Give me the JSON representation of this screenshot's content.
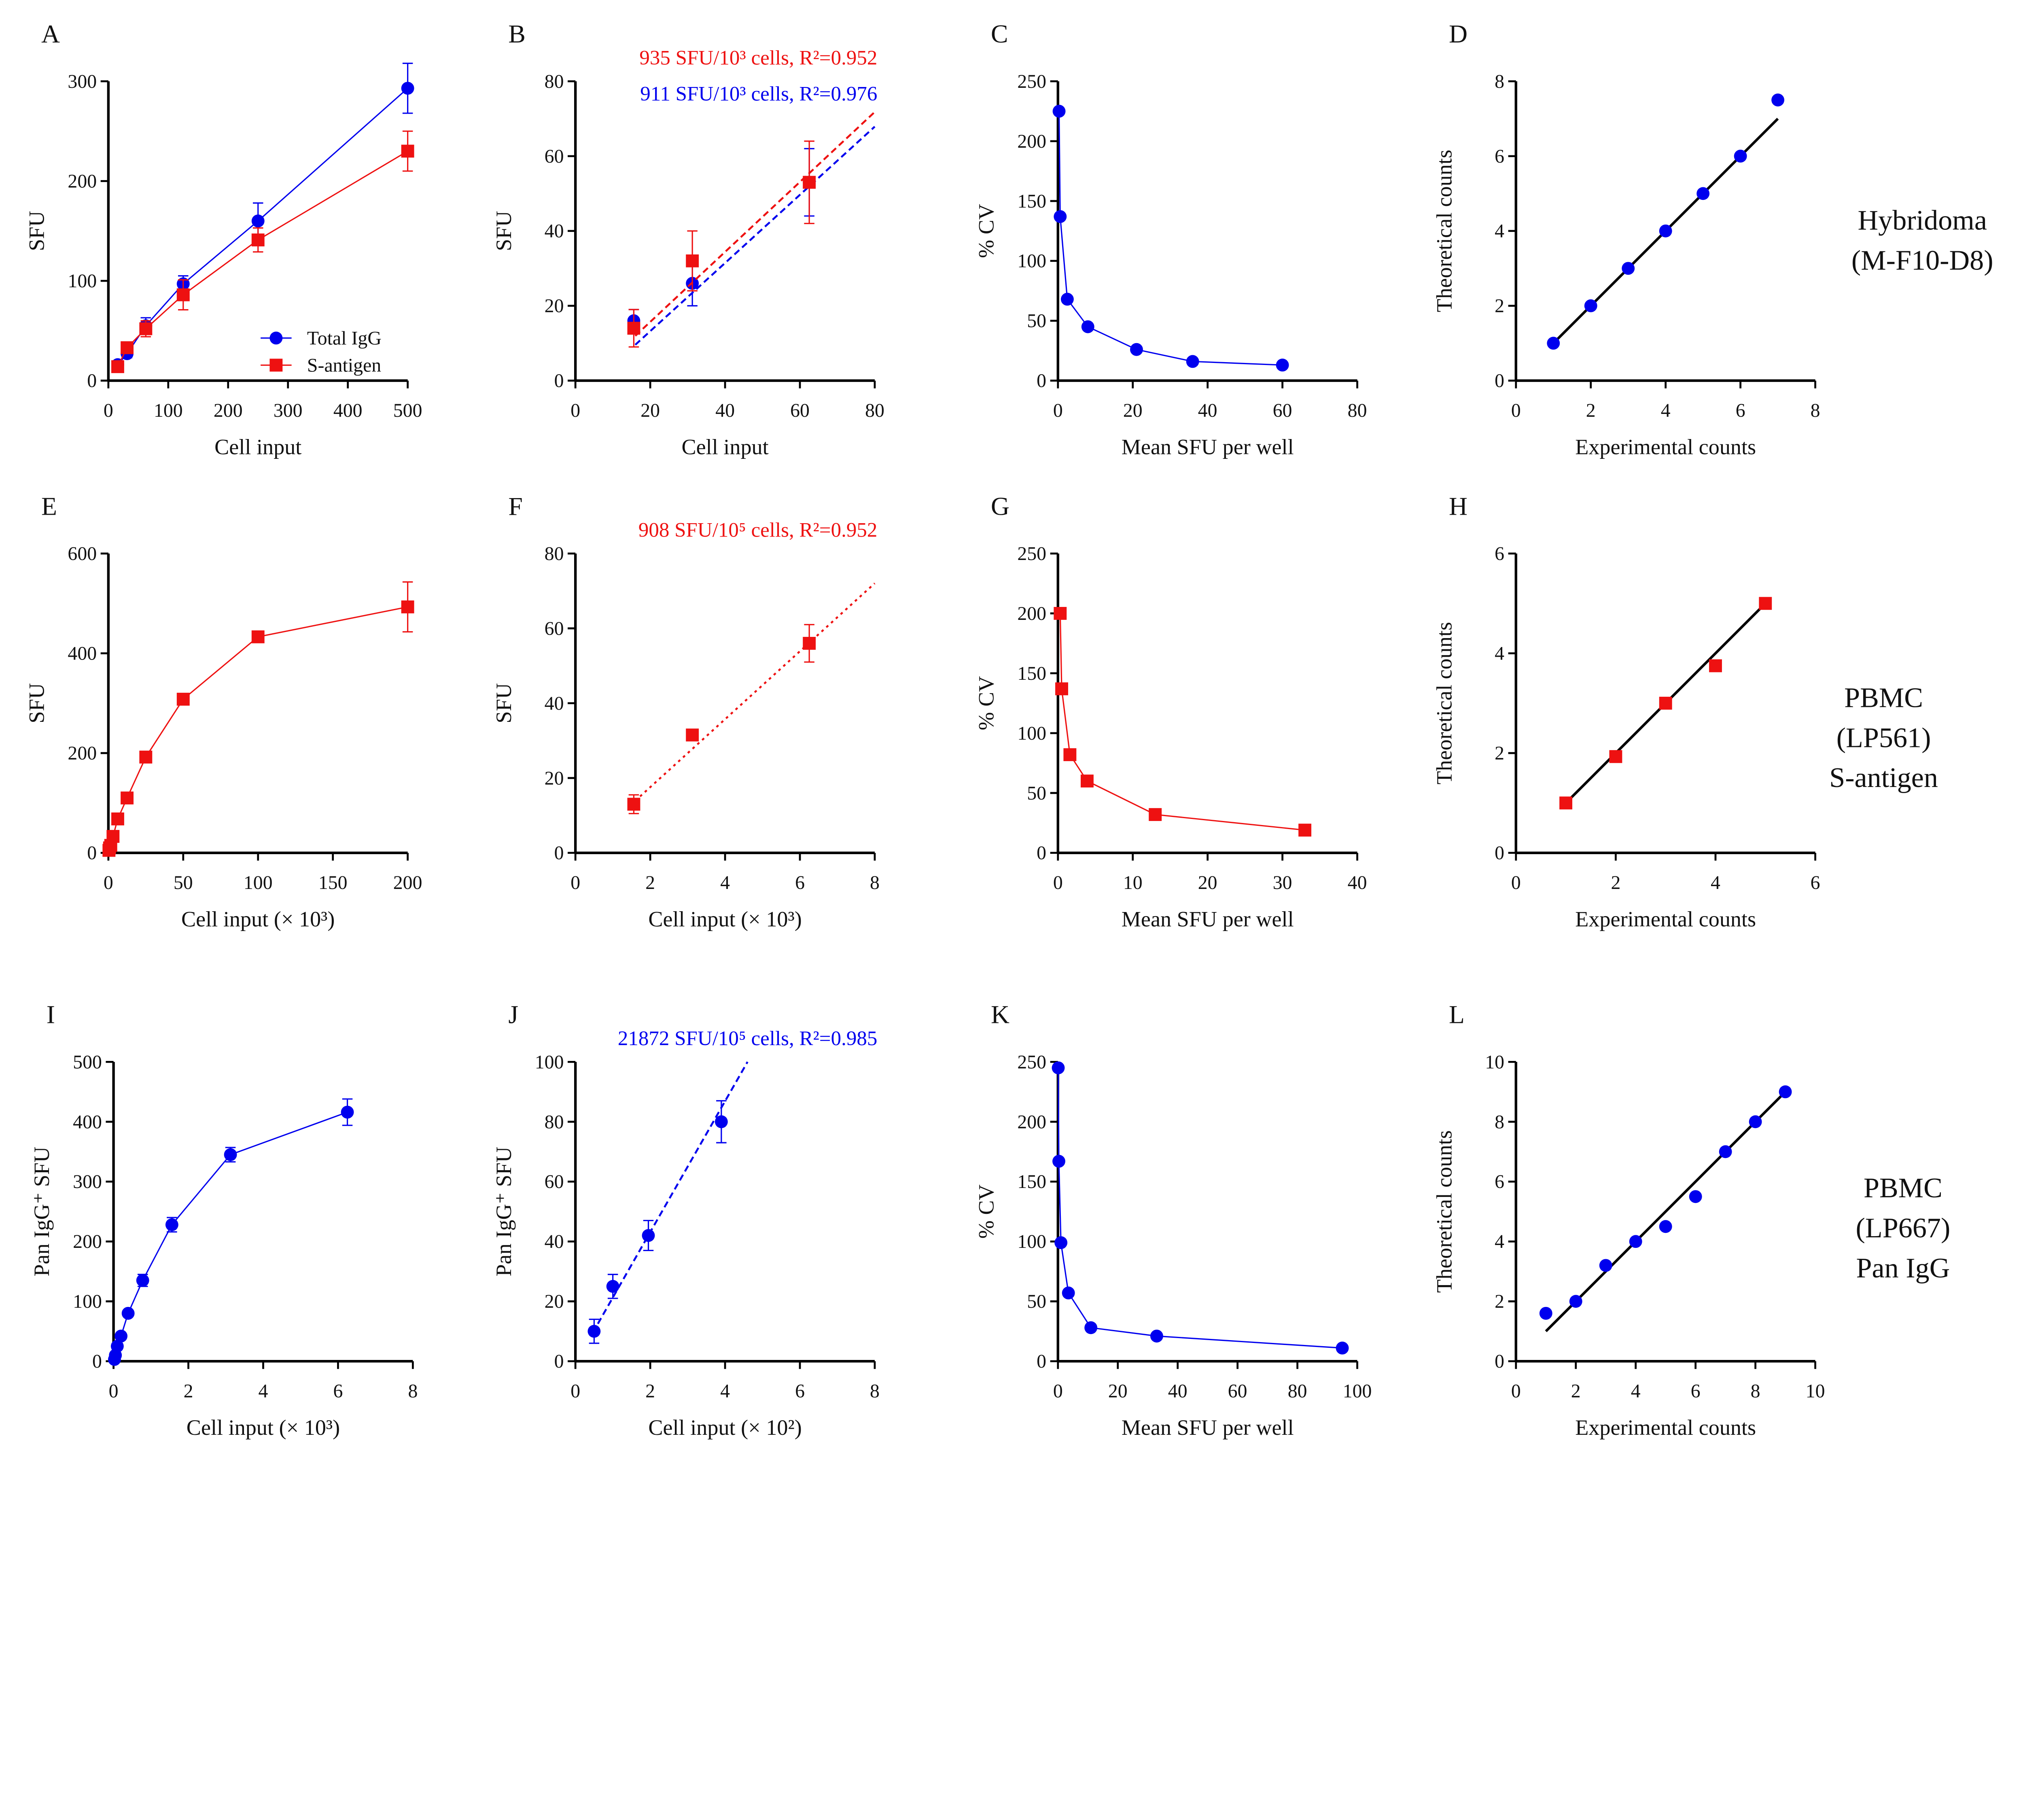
{
  "colors": {
    "blue": "#0000ee",
    "red": "#ee1111",
    "black": "#000000"
  },
  "row_labels": [
    [
      "Hybridoma",
      "(M-F10-D8)"
    ],
    [
      "PBMC",
      "(LP561)",
      "S-antigen"
    ],
    [
      "PBMC",
      "(LP667)",
      "Pan IgG"
    ]
  ],
  "chart_data": [
    {
      "panel": "A",
      "type": "line",
      "xlabel": "Cell input",
      "ylabel": "SFU",
      "xlim": [
        0,
        500
      ],
      "ylim": [
        0,
        300
      ],
      "xticks": [
        0,
        100,
        200,
        300,
        400,
        500
      ],
      "yticks": [
        0,
        100,
        200,
        300
      ],
      "legend": "bottom-right",
      "series": [
        {
          "name": "Total IgG",
          "marker": "circle",
          "color": "blue",
          "x": [
            15.6,
            31.25,
            62.5,
            125,
            250,
            500
          ],
          "y": [
            16,
            27,
            55,
            97,
            160,
            293
          ],
          "err": [
            3,
            4,
            8,
            8,
            18,
            25
          ]
        },
        {
          "name": "S-antigen",
          "marker": "square",
          "color": "red",
          "x": [
            15.6,
            31.25,
            62.5,
            125,
            250,
            500
          ],
          "y": [
            14,
            33,
            52,
            86,
            141,
            230
          ],
          "err": [
            4,
            5,
            8,
            15,
            12,
            20
          ]
        }
      ]
    },
    {
      "panel": "B",
      "type": "scatter",
      "xlabel": "Cell input",
      "ylabel": "SFU",
      "xlim": [
        0,
        80
      ],
      "ylim": [
        0,
        80
      ],
      "xticks": [
        0,
        20,
        40,
        60,
        80
      ],
      "yticks": [
        0,
        20,
        40,
        60,
        80
      ],
      "annotations": [
        {
          "text": "935 SFU/10³ cells, R²=0.952",
          "color": "red"
        },
        {
          "text": "911 SFU/10³ cells, R²=0.976",
          "color": "blue"
        }
      ],
      "series": [
        {
          "marker": "circle",
          "color": "blue",
          "x": [
            15.6,
            31.25,
            62.5
          ],
          "y": [
            16,
            26,
            53
          ],
          "err": [
            3,
            6,
            9
          ],
          "fit": {
            "slope": 0.911,
            "intercept": -5,
            "x": [
              16,
              80
            ],
            "style": "dashed"
          }
        },
        {
          "marker": "square",
          "color": "red",
          "x": [
            15.6,
            31.25,
            62.5
          ],
          "y": [
            14,
            32,
            53
          ],
          "err": [
            5,
            8,
            11
          ],
          "fit": {
            "slope": 0.935,
            "intercept": -3,
            "x": [
              16,
              80
            ],
            "style": "dashed"
          }
        }
      ]
    },
    {
      "panel": "C",
      "type": "line",
      "xlabel": "Mean SFU per well",
      "ylabel": "% CV",
      "xlim": [
        0,
        80
      ],
      "ylim": [
        0,
        250
      ],
      "xticks": [
        0,
        20,
        40,
        60,
        80
      ],
      "yticks": [
        0,
        50,
        100,
        150,
        200,
        250
      ],
      "series": [
        {
          "marker": "circle",
          "color": "blue",
          "x": [
            0.3,
            0.6,
            2.5,
            8,
            21,
            36,
            60
          ],
          "y": [
            225,
            137,
            68,
            45,
            26,
            16,
            13
          ]
        }
      ]
    },
    {
      "panel": "D",
      "type": "scatter",
      "xlabel": "Experimental counts",
      "ylabel": "Theoretical counts",
      "xlim": [
        0,
        8
      ],
      "ylim": [
        0,
        8
      ],
      "xticks": [
        0,
        2,
        4,
        6,
        8
      ],
      "yticks": [
        0,
        2,
        4,
        6,
        8
      ],
      "series": [
        {
          "marker": "circle",
          "color": "blue",
          "x": [
            1,
            2,
            3,
            4,
            5,
            6,
            7
          ],
          "y": [
            1,
            2,
            3,
            4,
            5,
            6,
            7.5
          ],
          "fit": {
            "slope": 1,
            "intercept": 0,
            "x": [
              1,
              7
            ],
            "style": "solid",
            "color": "black"
          }
        }
      ]
    },
    {
      "panel": "E",
      "type": "line",
      "xlabel": "Cell input (× 10³)",
      "ylabel": "SFU",
      "xlim": [
        0,
        200
      ],
      "ylim": [
        0,
        600
      ],
      "xticks": [
        0,
        50,
        100,
        150,
        200
      ],
      "yticks": [
        0,
        200,
        400,
        600
      ],
      "series": [
        {
          "marker": "square",
          "color": "red",
          "x": [
            0.4,
            0.8,
            1.6,
            3.1,
            6.25,
            12.5,
            25,
            50,
            100,
            200
          ],
          "y": [
            5,
            10,
            15,
            33,
            68,
            110,
            192,
            308,
            433,
            493
          ],
          "err": [
            0,
            0,
            0,
            0,
            0,
            0,
            0,
            0,
            0,
            50
          ]
        }
      ]
    },
    {
      "panel": "F",
      "type": "scatter",
      "xlabel": "Cell input (× 10³)",
      "ylabel": "SFU",
      "xlim": [
        0,
        8
      ],
      "ylim": [
        0,
        80
      ],
      "xticks": [
        0,
        2,
        4,
        6,
        8
      ],
      "yticks": [
        0,
        20,
        40,
        60,
        80
      ],
      "annotations": [
        {
          "text": "908 SFU/10⁵ cells, R²=0.952",
          "color": "red"
        }
      ],
      "series": [
        {
          "marker": "square",
          "color": "red",
          "x": [
            1.56,
            3.125,
            6.25
          ],
          "y": [
            13,
            31.5,
            56
          ],
          "err": [
            2.5,
            1,
            5
          ],
          "fit": {
            "slope": 9.08,
            "intercept": -0.6,
            "x": [
              1.6,
              8
            ],
            "style": "dotted"
          }
        }
      ]
    },
    {
      "panel": "G",
      "type": "line",
      "xlabel": "Mean SFU per well",
      "ylabel": "% CV",
      "xlim": [
        0,
        40
      ],
      "ylim": [
        0,
        250
      ],
      "xticks": [
        0,
        10,
        20,
        30,
        40
      ],
      "yticks": [
        0,
        50,
        100,
        150,
        200,
        250
      ],
      "series": [
        {
          "marker": "square",
          "color": "red",
          "x": [
            0.3,
            0.5,
            1.6,
            3.9,
            13,
            33
          ],
          "y": [
            200,
            137,
            82,
            60,
            32,
            19
          ]
        }
      ]
    },
    {
      "panel": "H",
      "type": "scatter",
      "xlabel": "Experimental counts",
      "ylabel": "Theoretical counts",
      "xlim": [
        0,
        6
      ],
      "ylim": [
        0,
        6
      ],
      "xticks": [
        0,
        2,
        4,
        6
      ],
      "yticks": [
        0,
        2,
        4,
        6
      ],
      "series": [
        {
          "marker": "square",
          "color": "red",
          "x": [
            1,
            2,
            3,
            4,
            5
          ],
          "y": [
            1,
            1.93,
            3,
            3.75,
            5
          ],
          "fit": {
            "slope": 1,
            "intercept": 0,
            "x": [
              1,
              5
            ],
            "style": "solid",
            "color": "black"
          }
        }
      ]
    },
    {
      "panel": "I",
      "type": "line",
      "xlabel": "Cell input (× 10³)",
      "ylabel": "Pan IgG⁺ SFU",
      "xlim": [
        0,
        8
      ],
      "ylim": [
        0,
        500
      ],
      "xticks": [
        0,
        2,
        4,
        6,
        8
      ],
      "yticks": [
        0,
        100,
        200,
        300,
        400,
        500
      ],
      "series": [
        {
          "marker": "circle",
          "color": "blue",
          "x": [
            0.025,
            0.05,
            0.1,
            0.2,
            0.39,
            0.78,
            1.56,
            3.125,
            6.25
          ],
          "y": [
            3,
            10,
            25,
            42,
            80,
            135,
            228,
            345,
            416
          ],
          "err": [
            0,
            0,
            0,
            0,
            0,
            10,
            12,
            12,
            22
          ]
        }
      ]
    },
    {
      "panel": "J",
      "type": "scatter",
      "xlabel": "Cell input (× 10²)",
      "ylabel": "Pan IgG⁺ SFU",
      "xlim": [
        0,
        8
      ],
      "ylim": [
        0,
        100
      ],
      "xticks": [
        0,
        2,
        4,
        6,
        8
      ],
      "yticks": [
        0,
        20,
        40,
        60,
        80,
        100
      ],
      "annotations": [
        {
          "text": "21872 SFU/10⁵ cells, R²=0.985",
          "color": "blue"
        }
      ],
      "series": [
        {
          "marker": "circle",
          "color": "blue",
          "x": [
            0.5,
            1,
            1.95,
            3.9
          ],
          "y": [
            10,
            25,
            42,
            80
          ],
          "err": [
            4,
            4,
            5,
            7
          ],
          "fit": {
            "slope": 21.87,
            "intercept": -0.6,
            "x": [
              0.6,
              4.6
            ],
            "style": "dashed"
          }
        }
      ]
    },
    {
      "panel": "K",
      "type": "line",
      "xlabel": "Mean SFU per well",
      "ylabel": "% CV",
      "xlim": [
        0,
        100
      ],
      "ylim": [
        0,
        250
      ],
      "xticks": [
        0,
        20,
        40,
        60,
        80,
        100
      ],
      "yticks": [
        0,
        50,
        100,
        150,
        200,
        250
      ],
      "series": [
        {
          "marker": "circle",
          "color": "blue",
          "x": [
            0.1,
            0.3,
            1,
            3.5,
            11,
            33,
            95
          ],
          "y": [
            245,
            167,
            99,
            57,
            28,
            21,
            11
          ]
        }
      ]
    },
    {
      "panel": "L",
      "type": "scatter",
      "xlabel": "Experimental counts",
      "ylabel": "Theoretical counts",
      "xlim": [
        0,
        10
      ],
      "ylim": [
        0,
        10
      ],
      "xticks": [
        0,
        2,
        4,
        6,
        8,
        10
      ],
      "yticks": [
        0,
        2,
        4,
        6,
        8,
        10
      ],
      "series": [
        {
          "marker": "circle",
          "color": "blue",
          "x": [
            1,
            2,
            3,
            4,
            5,
            6,
            7,
            8,
            9
          ],
          "y": [
            1.6,
            2,
            3.2,
            4,
            4.5,
            5.5,
            7,
            8,
            9
          ],
          "fit": {
            "slope": 1,
            "intercept": 0,
            "x": [
              1,
              9
            ],
            "style": "solid",
            "color": "black"
          }
        }
      ]
    }
  ]
}
